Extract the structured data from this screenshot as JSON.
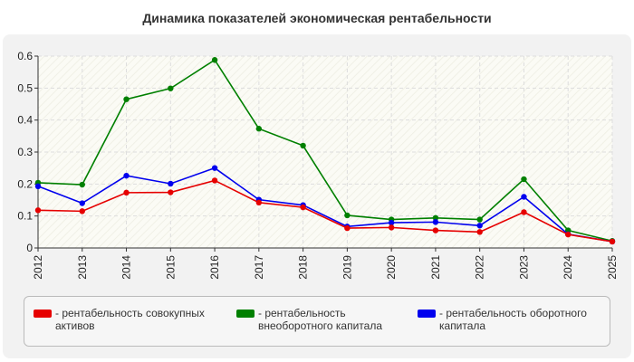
{
  "chart_data": {
    "type": "line",
    "title": "Динамика показателей экономическая рентабельности",
    "x": [
      "2012",
      "2013",
      "2014",
      "2015",
      "2016",
      "2017",
      "2018",
      "2019",
      "2020",
      "2021",
      "2022",
      "2023",
      "2024",
      "2025"
    ],
    "ylim": [
      0,
      0.6
    ],
    "yticks": [
      "0",
      "0.1",
      "0.2",
      "0.3",
      "0.4",
      "0.5",
      "0.6"
    ],
    "grid": true,
    "legend_position": "bottom",
    "series": [
      {
        "name": "- рентабельность совокупных активов",
        "color": "#e60000",
        "values": [
          0.118,
          0.115,
          0.173,
          0.174,
          0.211,
          0.142,
          0.127,
          0.062,
          0.064,
          0.055,
          0.05,
          0.112,
          0.042,
          0.02
        ]
      },
      {
        "name": "- рентабельность внеоборотного капитала",
        "color": "#008000",
        "values": [
          0.204,
          0.198,
          0.465,
          0.499,
          0.588,
          0.373,
          0.32,
          0.102,
          0.089,
          0.094,
          0.089,
          0.215,
          0.055,
          0.022
        ]
      },
      {
        "name": "- рентабельность оборотного капитала",
        "color": "#0000ee",
        "values": [
          0.193,
          0.14,
          0.226,
          0.201,
          0.25,
          0.151,
          0.134,
          0.067,
          0.079,
          0.081,
          0.07,
          0.16,
          0.043,
          0.02
        ]
      }
    ]
  }
}
